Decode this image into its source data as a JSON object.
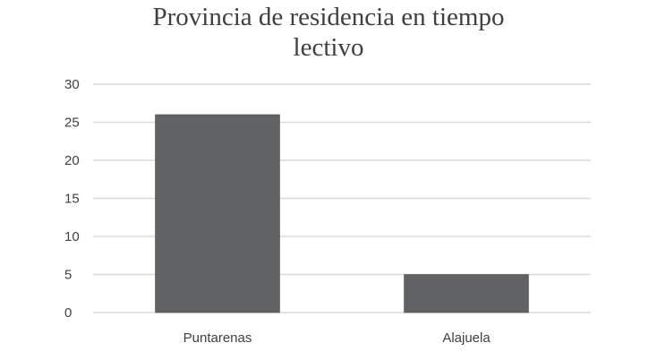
{
  "chart_data": {
    "type": "bar",
    "title_lines": [
      "Provincia de residencia en tiempo",
      "lectivo"
    ],
    "categories": [
      "Puntarenas",
      "Alajuela"
    ],
    "values": [
      26,
      5
    ],
    "xlabel": "",
    "ylabel": "",
    "ylim": [
      0,
      30
    ],
    "yticks": [
      "0",
      "5",
      "10",
      "15",
      "20",
      "25",
      "30"
    ],
    "grid": true,
    "legend": "none",
    "bar_color": "#616264",
    "grid_color": "#d9d9d9"
  }
}
